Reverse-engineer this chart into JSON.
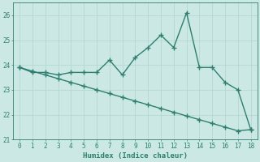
{
  "xlabel": "Humidex (Indice chaleur)",
  "x": [
    0,
    1,
    2,
    3,
    4,
    5,
    6,
    7,
    8,
    9,
    10,
    11,
    12,
    13,
    14,
    15,
    16,
    17,
    18
  ],
  "y_line": [
    23.9,
    23.7,
    23.7,
    23.6,
    23.7,
    23.7,
    23.7,
    24.2,
    23.6,
    24.3,
    24.7,
    25.2,
    24.7,
    26.1,
    23.9,
    23.9,
    23.3,
    23.0,
    21.4
  ],
  "y_trend": [
    23.9,
    23.75,
    23.6,
    23.45,
    23.3,
    23.15,
    23.0,
    22.85,
    22.7,
    22.55,
    22.4,
    22.25,
    22.1,
    21.95,
    21.8,
    21.65,
    21.5,
    21.35,
    21.4
  ],
  "ylim": [
    21.0,
    26.5
  ],
  "xlim": [
    -0.5,
    18.5
  ],
  "yticks": [
    21,
    22,
    23,
    24,
    25,
    26
  ],
  "xticks": [
    0,
    1,
    2,
    3,
    4,
    5,
    6,
    7,
    8,
    9,
    10,
    11,
    12,
    13,
    14,
    15,
    16,
    17,
    18
  ],
  "line_color": "#2e7f6f",
  "bg_color": "#cce8e4",
  "grid_color": "#afd4ce",
  "marker": "+",
  "marker_size": 4,
  "line_width": 1.0,
  "tick_fontsize": 5.5,
  "xlabel_fontsize": 6.5
}
